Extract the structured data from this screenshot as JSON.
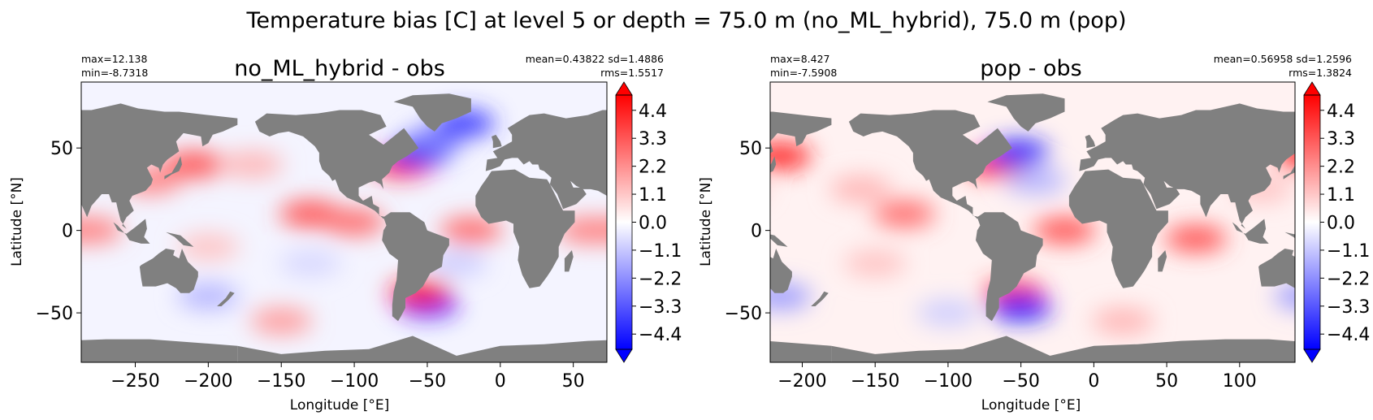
{
  "figure": {
    "suptitle": "Temperature bias [C] at level 5 or depth = 75.0 m (no_ML_hybrid), 75.0 m (pop)"
  },
  "colors": {
    "land": "#808080",
    "cmap_low": "#0000ff",
    "cmap_mid": "#ffffff",
    "cmap_high": "#ff0000",
    "frame": "#000000"
  },
  "chart_data": [
    {
      "type": "heatmap",
      "title": "no_ML_hybrid - obs",
      "stats": {
        "max": "max=12.138",
        "min": "min=-8.7318",
        "mean_sd": "mean=0.43822 sd=1.4886",
        "rms": "rms=1.5517"
      },
      "xlabel": "Longitude [°E]",
      "ylabel": "Latitude [°N]",
      "xlim": [
        -287,
        73
      ],
      "ylim": [
        -80,
        90
      ],
      "xticks": [
        -250,
        -200,
        -150,
        -100,
        -50,
        0,
        50
      ],
      "xtick_labels": [
        "−250",
        "−200",
        "−150",
        "−100",
        "−50",
        "0",
        "50"
      ],
      "yticks": [
        50,
        0,
        -50
      ],
      "ytick_labels": [
        "50",
        "0",
        "−50"
      ],
      "colorbar": {
        "vmin": -5.0,
        "vmax": 5.0,
        "extend": "both",
        "ticks": [
          4.4,
          3.3,
          2.2,
          1.1,
          0.0,
          -1.1,
          -2.2,
          -3.3,
          -4.4
        ],
        "tick_labels": [
          "4.4",
          "3.3",
          "2.2",
          "1.1",
          "0.0",
          "−1.1",
          "−2.2",
          "−3.3",
          "−4.4"
        ]
      },
      "features": [
        {
          "lon": -130,
          "lat": 10,
          "value": 3.5
        },
        {
          "lon": -100,
          "lat": 5,
          "value": 3.0
        },
        {
          "lon": -20,
          "lat": 0,
          "value": 3.0
        },
        {
          "lon": -67,
          "lat": 40,
          "value": 4.5
        },
        {
          "lon": -55,
          "lat": 47,
          "value": -4.5
        },
        {
          "lon": -45,
          "lat": 55,
          "value": -2.5
        },
        {
          "lon": -25,
          "lat": 65,
          "value": -4.0
        },
        {
          "lon": -210,
          "lat": 40,
          "value": 3.5
        },
        {
          "lon": -240,
          "lat": 30,
          "value": 2.5
        },
        {
          "lon": -170,
          "lat": 40,
          "value": 1.5
        },
        {
          "lon": 60,
          "lat": 0,
          "value": 2.5
        },
        {
          "lon": -280,
          "lat": 0,
          "value": 2.5
        },
        {
          "lon": -50,
          "lat": -45,
          "value": -4.5
        },
        {
          "lon": -55,
          "lat": -38,
          "value": 4.5
        },
        {
          "lon": -200,
          "lat": -40,
          "value": -1.5
        },
        {
          "lon": -150,
          "lat": -55,
          "value": 2.0
        },
        {
          "lon": -30,
          "lat": -20,
          "value": -1.0
        },
        {
          "lon": -130,
          "lat": -20,
          "value": -0.8
        },
        {
          "lon": -200,
          "lat": -10,
          "value": 1.2
        }
      ]
    },
    {
      "type": "heatmap",
      "title": "pop - obs",
      "stats": {
        "max": "max=8.427",
        "min": "min=-7.5908",
        "mean_sd": "mean=0.56958 sd=1.2596",
        "rms": "rms=1.3824"
      },
      "xlabel": "Longitude [°E]",
      "ylabel": "Latitude [°N]",
      "xlim": [
        -222,
        138
      ],
      "ylim": [
        -80,
        90
      ],
      "xticks": [
        -200,
        -150,
        -100,
        -50,
        0,
        50,
        100
      ],
      "xtick_labels": [
        "−200",
        "−150",
        "−100",
        "−50",
        "0",
        "50",
        "100"
      ],
      "yticks": [
        50,
        0,
        -50
      ],
      "ytick_labels": [
        "50",
        "0",
        "−50"
      ],
      "colorbar": {
        "vmin": -5.0,
        "vmax": 5.0,
        "extend": "both",
        "ticks": [
          4.4,
          3.3,
          2.2,
          1.1,
          0.0,
          -1.1,
          -2.2,
          -3.3,
          -4.4
        ],
        "tick_labels": [
          "4.4",
          "3.3",
          "2.2",
          "1.1",
          "0.0",
          "−1.1",
          "−2.2",
          "−3.3",
          "−4.4"
        ]
      },
      "features": [
        {
          "lon": -130,
          "lat": 10,
          "value": 3.0
        },
        {
          "lon": -20,
          "lat": 0,
          "value": 3.5
        },
        {
          "lon": -67,
          "lat": 40,
          "value": 4.5
        },
        {
          "lon": -52,
          "lat": 47,
          "value": -4.5
        },
        {
          "lon": -40,
          "lat": 30,
          "value": -1.5
        },
        {
          "lon": 70,
          "lat": -5,
          "value": 3.5
        },
        {
          "lon": -160,
          "lat": 25,
          "value": 1.5
        },
        {
          "lon": -150,
          "lat": -20,
          "value": 1.2
        },
        {
          "lon": -55,
          "lat": -38,
          "value": 4.0
        },
        {
          "lon": -50,
          "lat": -47,
          "value": -4.5
        },
        {
          "lon": -215,
          "lat": -40,
          "value": -2.0
        },
        {
          "lon": -100,
          "lat": -50,
          "value": -1.0
        },
        {
          "lon": -215,
          "lat": 45,
          "value": 4.5
        },
        {
          "lon": 20,
          "lat": -55,
          "value": 1.5
        },
        {
          "lon": 115,
          "lat": 25,
          "value": 1.2
        }
      ]
    }
  ]
}
